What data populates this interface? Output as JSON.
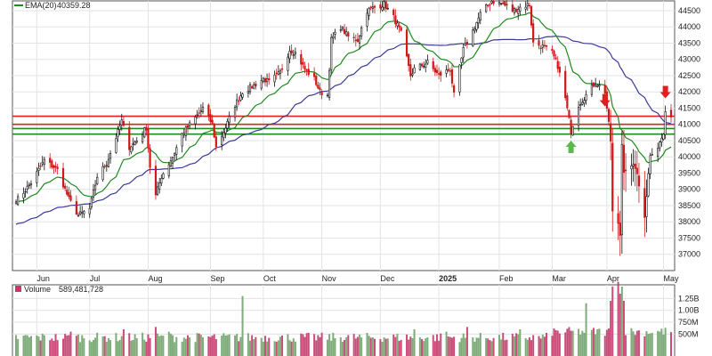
{
  "chart_data": {
    "type": "candlestick",
    "legend": {
      "ema_label": "EMA(20)",
      "ema_value": "40359.28",
      "volume_label": "Volume",
      "volume_value": "589,481,728"
    },
    "price_axis": {
      "range": [
        36500,
        44800
      ],
      "ticks": [
        "44500",
        "44000",
        "43500",
        "43000",
        "42500",
        "42000",
        "41500",
        "41000",
        "40500",
        "40000",
        "39500",
        "39000",
        "38500",
        "38000",
        "37500",
        "37000"
      ]
    },
    "volume_axis": {
      "range": [
        0,
        1500000000
      ],
      "ticks": [
        {
          "label": "1.25B",
          "value": 1250000000
        },
        {
          "label": "1.00B",
          "value": 1000000000
        },
        {
          "label": "750M",
          "value": 750000000
        },
        {
          "label": "500M",
          "value": 500000000
        }
      ]
    },
    "months": [
      {
        "label": "Jun",
        "date": "2024-06-03"
      },
      {
        "label": "Jul",
        "date": "2024-07-01"
      },
      {
        "label": "Aug",
        "date": "2024-08-01"
      },
      {
        "label": "Sep",
        "date": "2024-09-03"
      },
      {
        "label": "Oct",
        "date": "2024-10-01"
      },
      {
        "label": "Nov",
        "date": "2024-11-01"
      },
      {
        "label": "Dec",
        "date": "2024-12-02"
      },
      {
        "label": "2025",
        "date": "2025-01-02",
        "bold": true
      },
      {
        "label": "Feb",
        "date": "2025-02-03"
      },
      {
        "label": "Mar",
        "date": "2025-03-03"
      },
      {
        "label": "Apr",
        "date": "2025-04-01"
      },
      {
        "label": "May",
        "date": "2025-05-01"
      }
    ],
    "horizontal_lines": [
      {
        "value": 41250,
        "color": "#dd2222"
      },
      {
        "value": 41000,
        "color": "#dd2222"
      },
      {
        "value": 40870,
        "color": "#1f8a1f"
      },
      {
        "value": 40700,
        "color": "#1f8a1f"
      }
    ],
    "arrows": [
      {
        "date": "2025-03-13",
        "value": 40500,
        "direction": "up",
        "color": "#5bb84a"
      },
      {
        "date": "2025-03-31",
        "value": 41550,
        "direction": "down",
        "color": "#e02020"
      },
      {
        "date": "2025-05-02",
        "value": 41800,
        "direction": "down",
        "color": "#e02020"
      }
    ],
    "anchors": [
      [
        "2024-05-24",
        38700
      ],
      [
        "2024-05-31",
        39200
      ],
      [
        "2024-06-07",
        39900
      ],
      [
        "2024-06-14",
        39600
      ],
      [
        "2024-06-20",
        38700
      ],
      [
        "2024-06-25",
        38200
      ],
      [
        "2024-07-01",
        38400
      ],
      [
        "2024-07-05",
        39400
      ],
      [
        "2024-07-10",
        39800
      ],
      [
        "2024-07-15",
        40600
      ],
      [
        "2024-07-18",
        41100
      ],
      [
        "2024-07-22",
        40300
      ],
      [
        "2024-07-26",
        40500
      ],
      [
        "2024-07-31",
        40900
      ],
      [
        "2024-08-02",
        39700
      ],
      [
        "2024-08-05",
        38800
      ],
      [
        "2024-08-08",
        39400
      ],
      [
        "2024-08-14",
        40000
      ],
      [
        "2024-08-19",
        40700
      ],
      [
        "2024-08-26",
        41200
      ],
      [
        "2024-08-30",
        41500
      ],
      [
        "2024-09-04",
        41000
      ],
      [
        "2024-09-06",
        40300
      ],
      [
        "2024-09-11",
        40900
      ],
      [
        "2024-09-16",
        41600
      ],
      [
        "2024-09-20",
        42000
      ],
      [
        "2024-09-26",
        42200
      ],
      [
        "2024-10-01",
        42400
      ],
      [
        "2024-10-04",
        42300
      ],
      [
        "2024-10-10",
        42600
      ],
      [
        "2024-10-15",
        43300
      ],
      [
        "2024-10-18",
        43200
      ],
      [
        "2024-10-23",
        42700
      ],
      [
        "2024-10-28",
        42400
      ],
      [
        "2024-10-31",
        42000
      ],
      [
        "2024-11-04",
        41900
      ],
      [
        "2024-11-06",
        43600
      ],
      [
        "2024-11-11",
        44000
      ],
      [
        "2024-11-15",
        43700
      ],
      [
        "2024-11-20",
        43600
      ],
      [
        "2024-11-25",
        44500
      ],
      [
        "2024-11-29",
        44600
      ],
      [
        "2024-12-04",
        44700
      ],
      [
        "2024-12-09",
        44300
      ],
      [
        "2024-12-13",
        43800
      ],
      [
        "2024-12-18",
        42500
      ],
      [
        "2024-12-20",
        42700
      ],
      [
        "2024-12-27",
        42900
      ],
      [
        "2025-01-02",
        42500
      ],
      [
        "2025-01-08",
        42700
      ],
      [
        "2025-01-10",
        41900
      ],
      [
        "2025-01-15",
        43300
      ],
      [
        "2025-01-21",
        44000
      ],
      [
        "2025-01-24",
        44400
      ],
      [
        "2025-01-30",
        44800
      ],
      [
        "2025-02-05",
        44700
      ],
      [
        "2025-02-10",
        44500
      ],
      [
        "2025-02-14",
        44600
      ],
      [
        "2025-02-19",
        44700
      ],
      [
        "2025-02-21",
        43500
      ],
      [
        "2025-02-26",
        43400
      ],
      [
        "2025-03-03",
        43200
      ],
      [
        "2025-03-06",
        42800
      ],
      [
        "2025-03-10",
        41800
      ],
      [
        "2025-03-13",
        40800
      ],
      [
        "2025-03-17",
        41600
      ],
      [
        "2025-03-21",
        41900
      ],
      [
        "2025-03-26",
        42300
      ],
      [
        "2025-03-31",
        42000
      ],
      [
        "2025-04-03",
        40500
      ],
      [
        "2025-04-04",
        38300
      ],
      [
        "2025-04-07",
        37900
      ],
      [
        "2025-04-08",
        37600
      ],
      [
        "2025-04-09",
        40400
      ],
      [
        "2025-04-10",
        39600
      ],
      [
        "2025-04-16",
        39700
      ],
      [
        "2025-04-21",
        38200
      ],
      [
        "2025-04-24",
        40100
      ],
      [
        "2025-04-28",
        40300
      ],
      [
        "2025-05-01",
        40700
      ],
      [
        "2025-05-02",
        41300
      ]
    ],
    "volume_spikes": [
      [
        "2024-06-21",
        550000000
      ],
      [
        "2024-07-19",
        600000000
      ],
      [
        "2024-08-05",
        650000000
      ],
      [
        "2024-08-12",
        550000000
      ],
      [
        "2024-09-20",
        1300000000
      ],
      [
        "2024-12-20",
        600000000
      ],
      [
        "2025-01-06",
        550000000
      ],
      [
        "2025-01-17",
        650000000
      ],
      [
        "2025-02-14",
        600000000
      ],
      [
        "2025-03-21",
        1150000000
      ],
      [
        "2025-04-03",
        1200000000
      ],
      [
        "2025-04-04",
        1500000000
      ],
      [
        "2025-04-07",
        1600000000
      ],
      [
        "2025-04-08",
        1350000000
      ],
      [
        "2025-04-09",
        1500000000
      ],
      [
        "2025-04-10",
        1200000000
      ]
    ]
  }
}
